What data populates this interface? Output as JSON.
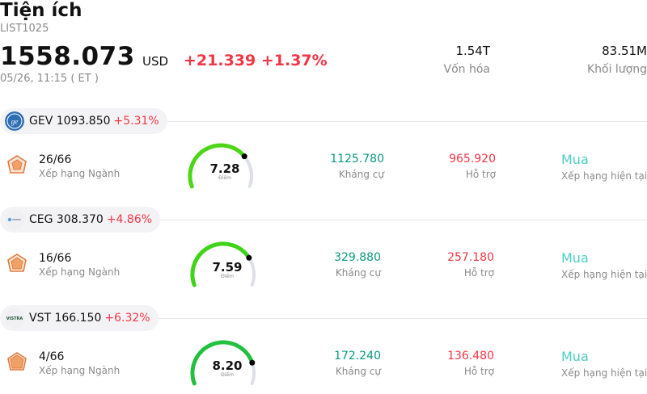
{
  "header": {
    "title": "Tiện ích",
    "code": "LIST1025",
    "price": "1558.073",
    "currency": "USD",
    "change": "+21.339 +1.37%",
    "time": "05/26, 11:15  ( ET )",
    "market_cap_value": "1.54T",
    "market_cap_label": "Vốn hóa",
    "volume_value": "83.51M",
    "volume_label": "Khối lượng"
  },
  "colors": {
    "up": "#f23645",
    "resistance": "#089981",
    "support": "#f23645",
    "rating": "#4ecdc4",
    "gauge_track": "#dde0e6"
  },
  "stocks": [
    {
      "ticker_price": "GEV 1093.850",
      "change_pct": "+5.31%",
      "logo": "ge-logo-icon",
      "rank": "26/66",
      "rank_label": "Xếp hạng Ngành",
      "score": "7.28",
      "score_value": 7.28,
      "score_label": "Điểm",
      "gauge_color": "#4cd617",
      "resistance": "1125.780",
      "resistance_label": "Kháng cự",
      "support": "965.920",
      "support_label": "Hỗ trợ",
      "rating": "Mua",
      "rating_label": "Xếp hạng hiện tại"
    },
    {
      "ticker_price": "CEG 308.370",
      "change_pct": "+4.86%",
      "logo": "constellation-logo-icon",
      "rank": "16/66",
      "rank_label": "Xếp hạng Ngành",
      "score": "7.59",
      "score_value": 7.59,
      "score_label": "Điểm",
      "gauge_color": "#3fd31a",
      "resistance": "329.880",
      "resistance_label": "Kháng cự",
      "support": "257.180",
      "support_label": "Hỗ trợ",
      "rating": "Mua",
      "rating_label": "Xếp hạng hiện tại"
    },
    {
      "ticker_price": "VST 166.150",
      "change_pct": "+6.32%",
      "logo": "vistra-logo-icon",
      "rank": "4/66",
      "rank_label": "Xếp hạng Ngành",
      "score": "8.20",
      "score_value": 8.2,
      "score_label": "Điểm",
      "gauge_color": "#22c03f",
      "resistance": "172.240",
      "resistance_label": "Kháng cự",
      "support": "136.480",
      "support_label": "Hỗ trợ",
      "rating": "Mua",
      "rating_label": "Xếp hạng hiện tại"
    }
  ]
}
